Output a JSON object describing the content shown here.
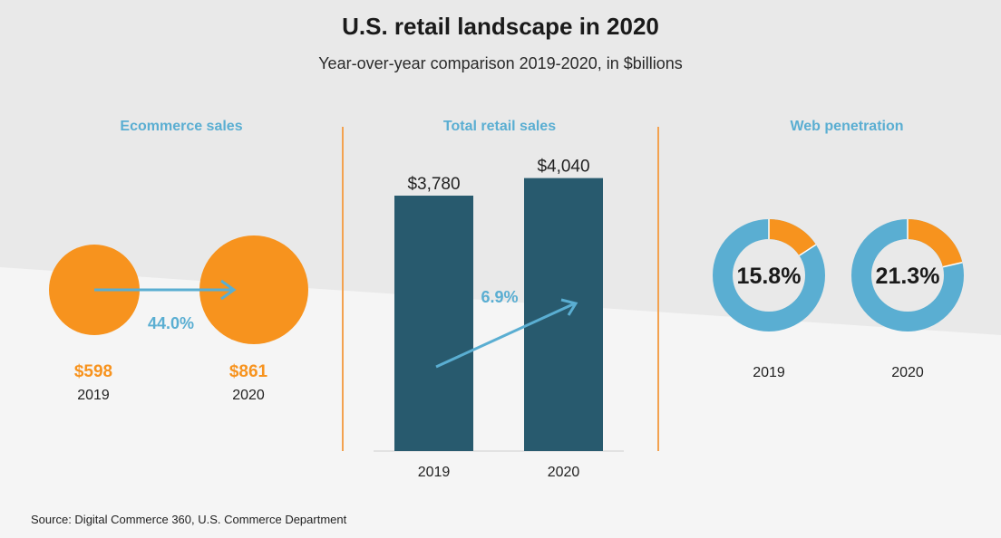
{
  "header": {
    "title": "U.S. retail landscape in 2020",
    "subtitle": "Year-over-year comparison 2019-2020, in $billions"
  },
  "colors": {
    "orange": "#f7931e",
    "light_blue": "#5aaed2",
    "dark_teal": "#285a6e",
    "divider": "#f3a250"
  },
  "chart_data": [
    {
      "type": "bubble",
      "title": "Ecommerce sales",
      "categories": [
        "2019",
        "2020"
      ],
      "values": [
        598,
        861
      ],
      "value_labels": [
        "$598",
        "$861"
      ],
      "change_label": "44.0%"
    },
    {
      "type": "bar",
      "title": "Total retail sales",
      "categories": [
        "2019",
        "2020"
      ],
      "values": [
        3780,
        4040
      ],
      "value_labels": [
        "$3,780",
        "$4,040"
      ],
      "change_label": "6.9%"
    },
    {
      "type": "donut",
      "title": "Web penetration",
      "categories": [
        "2019",
        "2020"
      ],
      "values": [
        15.8,
        21.3
      ],
      "value_labels": [
        "15.8%",
        "21.3%"
      ]
    }
  ],
  "footer": {
    "source": "Source: Digital Commerce 360, U.S. Commerce Department"
  }
}
